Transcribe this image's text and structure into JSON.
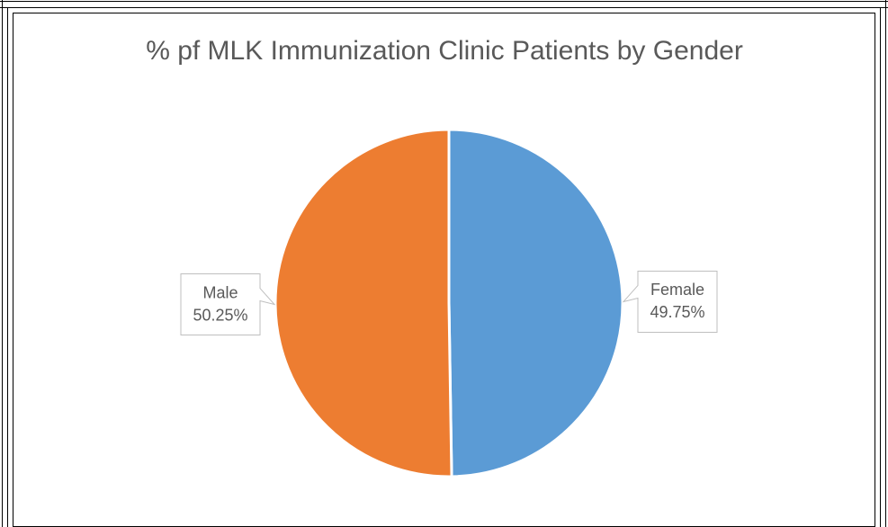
{
  "chart_data": {
    "type": "pie",
    "title": "% pf MLK Immunization Clinic Patients by Gender",
    "categories": [
      "Female",
      "Male"
    ],
    "values": [
      49.75,
      50.25
    ],
    "value_labels": [
      "49.75%",
      "50.25%"
    ],
    "colors": [
      "#5b9bd5",
      "#ed7d31"
    ]
  }
}
